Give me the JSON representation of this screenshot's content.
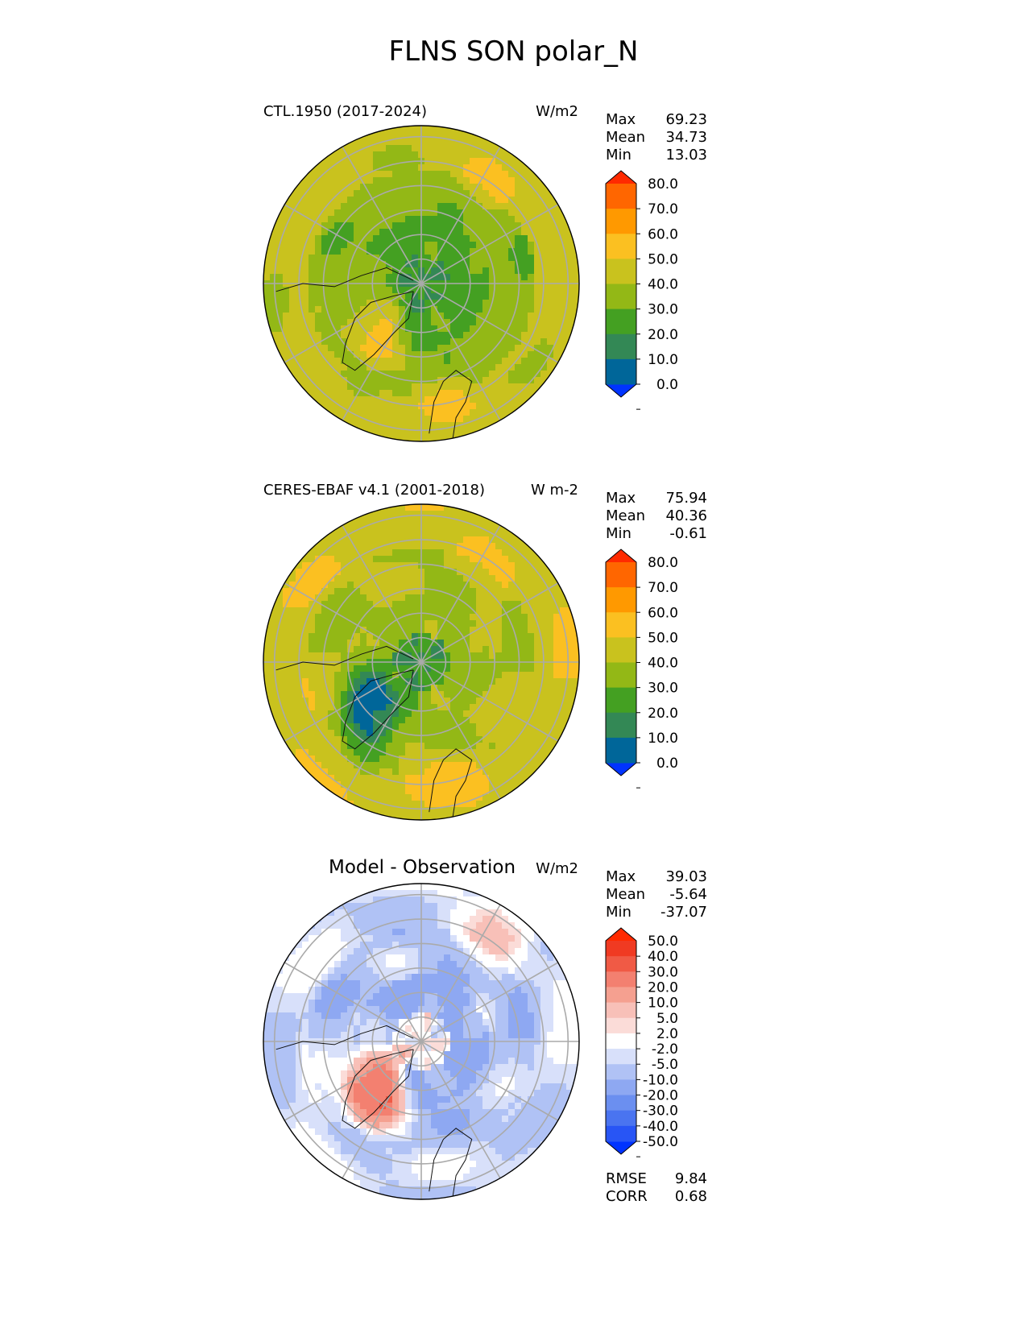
{
  "figure_title": "FLNS SON polar_N",
  "chart_data": [
    {
      "type": "heatmap",
      "projection": "north-polar-stereographic",
      "title": "CTL.1950 (2017-2024)",
      "units": "W/m2",
      "stats": {
        "max": "69.23",
        "mean": "34.73",
        "min": "13.03"
      },
      "stat_labels": {
        "max": "Max",
        "mean": "Mean",
        "min": "Min"
      },
      "colorbar": {
        "levels": [
          0,
          10,
          20,
          30,
          40,
          50,
          60,
          70,
          80
        ],
        "tick_labels": [
          "80.0",
          "70.0",
          "60.0",
          "50.0",
          "40.0",
          "30.0",
          "20.0",
          "10.0",
          "0.0"
        ],
        "colors": [
          "#0033ff",
          "#006699",
          "#338855",
          "#44a022",
          "#93b816",
          "#c9c21e",
          "#fbc021",
          "#ff9900",
          "#ff6600",
          "#ff2a00"
        ],
        "extend": "both"
      },
      "field": {
        "pole_value": 20,
        "inner_ring_value": 26,
        "mid_ring_value": 34,
        "outer_ring_value": 44,
        "greenland_value": 50,
        "europe_value": 47,
        "pacific_value": 52
      },
      "grid": true
    },
    {
      "type": "heatmap",
      "projection": "north-polar-stereographic",
      "title": "CERES-EBAF v4.1 (2001-2018)",
      "units": "W m-2",
      "stats": {
        "max": "75.94",
        "mean": "40.36",
        "min": "-0.61"
      },
      "stat_labels": {
        "max": "Max",
        "mean": "Mean",
        "min": "Min"
      },
      "colorbar": {
        "levels": [
          0,
          10,
          20,
          30,
          40,
          50,
          60,
          70,
          80
        ],
        "tick_labels": [
          "80.0",
          "70.0",
          "60.0",
          "50.0",
          "40.0",
          "30.0",
          "20.0",
          "10.0",
          "0.0"
        ],
        "colors": [
          "#0033ff",
          "#006699",
          "#338855",
          "#44a022",
          "#93b816",
          "#c9c21e",
          "#fbc021",
          "#ff9900",
          "#ff6600",
          "#ff2a00"
        ],
        "extend": "both"
      },
      "field": {
        "pole_value": 22,
        "inner_ring_value": 36,
        "mid_ring_value": 40,
        "outer_ring_value": 47,
        "greenland_value": 8,
        "europe_value": 52,
        "pacific_value": 50
      },
      "grid": true
    },
    {
      "type": "heatmap",
      "projection": "north-polar-stereographic",
      "title": "Model - Observation",
      "units": "W/m2",
      "stats": {
        "max": "39.03",
        "mean": "-5.64",
        "min": "-37.07"
      },
      "stat_labels": {
        "max": "Max",
        "mean": "Mean",
        "min": "Min"
      },
      "metrics": {
        "rmse_label": "RMSE",
        "rmse": "9.84",
        "corr_label": "CORR",
        "corr": "0.68"
      },
      "colorbar": {
        "levels": [
          -50,
          -40,
          -30,
          -20,
          -10,
          -5,
          -2,
          2,
          5,
          10,
          20,
          30,
          40,
          50
        ],
        "tick_labels": [
          "50.0",
          "40.0",
          "30.0",
          "20.0",
          "10.0",
          "5.0",
          "2.0",
          "-2.0",
          "-5.0",
          "-10.0",
          "-20.0",
          "-30.0",
          "-40.0",
          "-50.0"
        ],
        "colors": [
          "#0033ff",
          "#2855f5",
          "#4a74f0",
          "#6b8ff0",
          "#8ea8f2",
          "#b0c2f5",
          "#d8e0fa",
          "#ffffff",
          "#fbdcd8",
          "#f8c0b8",
          "#f5a090",
          "#f38070",
          "#f05a45",
          "#f03a22",
          "#ff2a00"
        ],
        "extend": "both"
      },
      "field": {
        "pole_value": 0,
        "inner_ring_value": -12,
        "mid_ring_value": -7,
        "outer_ring_value": -4,
        "greenland_value": 25,
        "europe_value": -6,
        "pacific_value": 6
      },
      "grid": true
    }
  ]
}
